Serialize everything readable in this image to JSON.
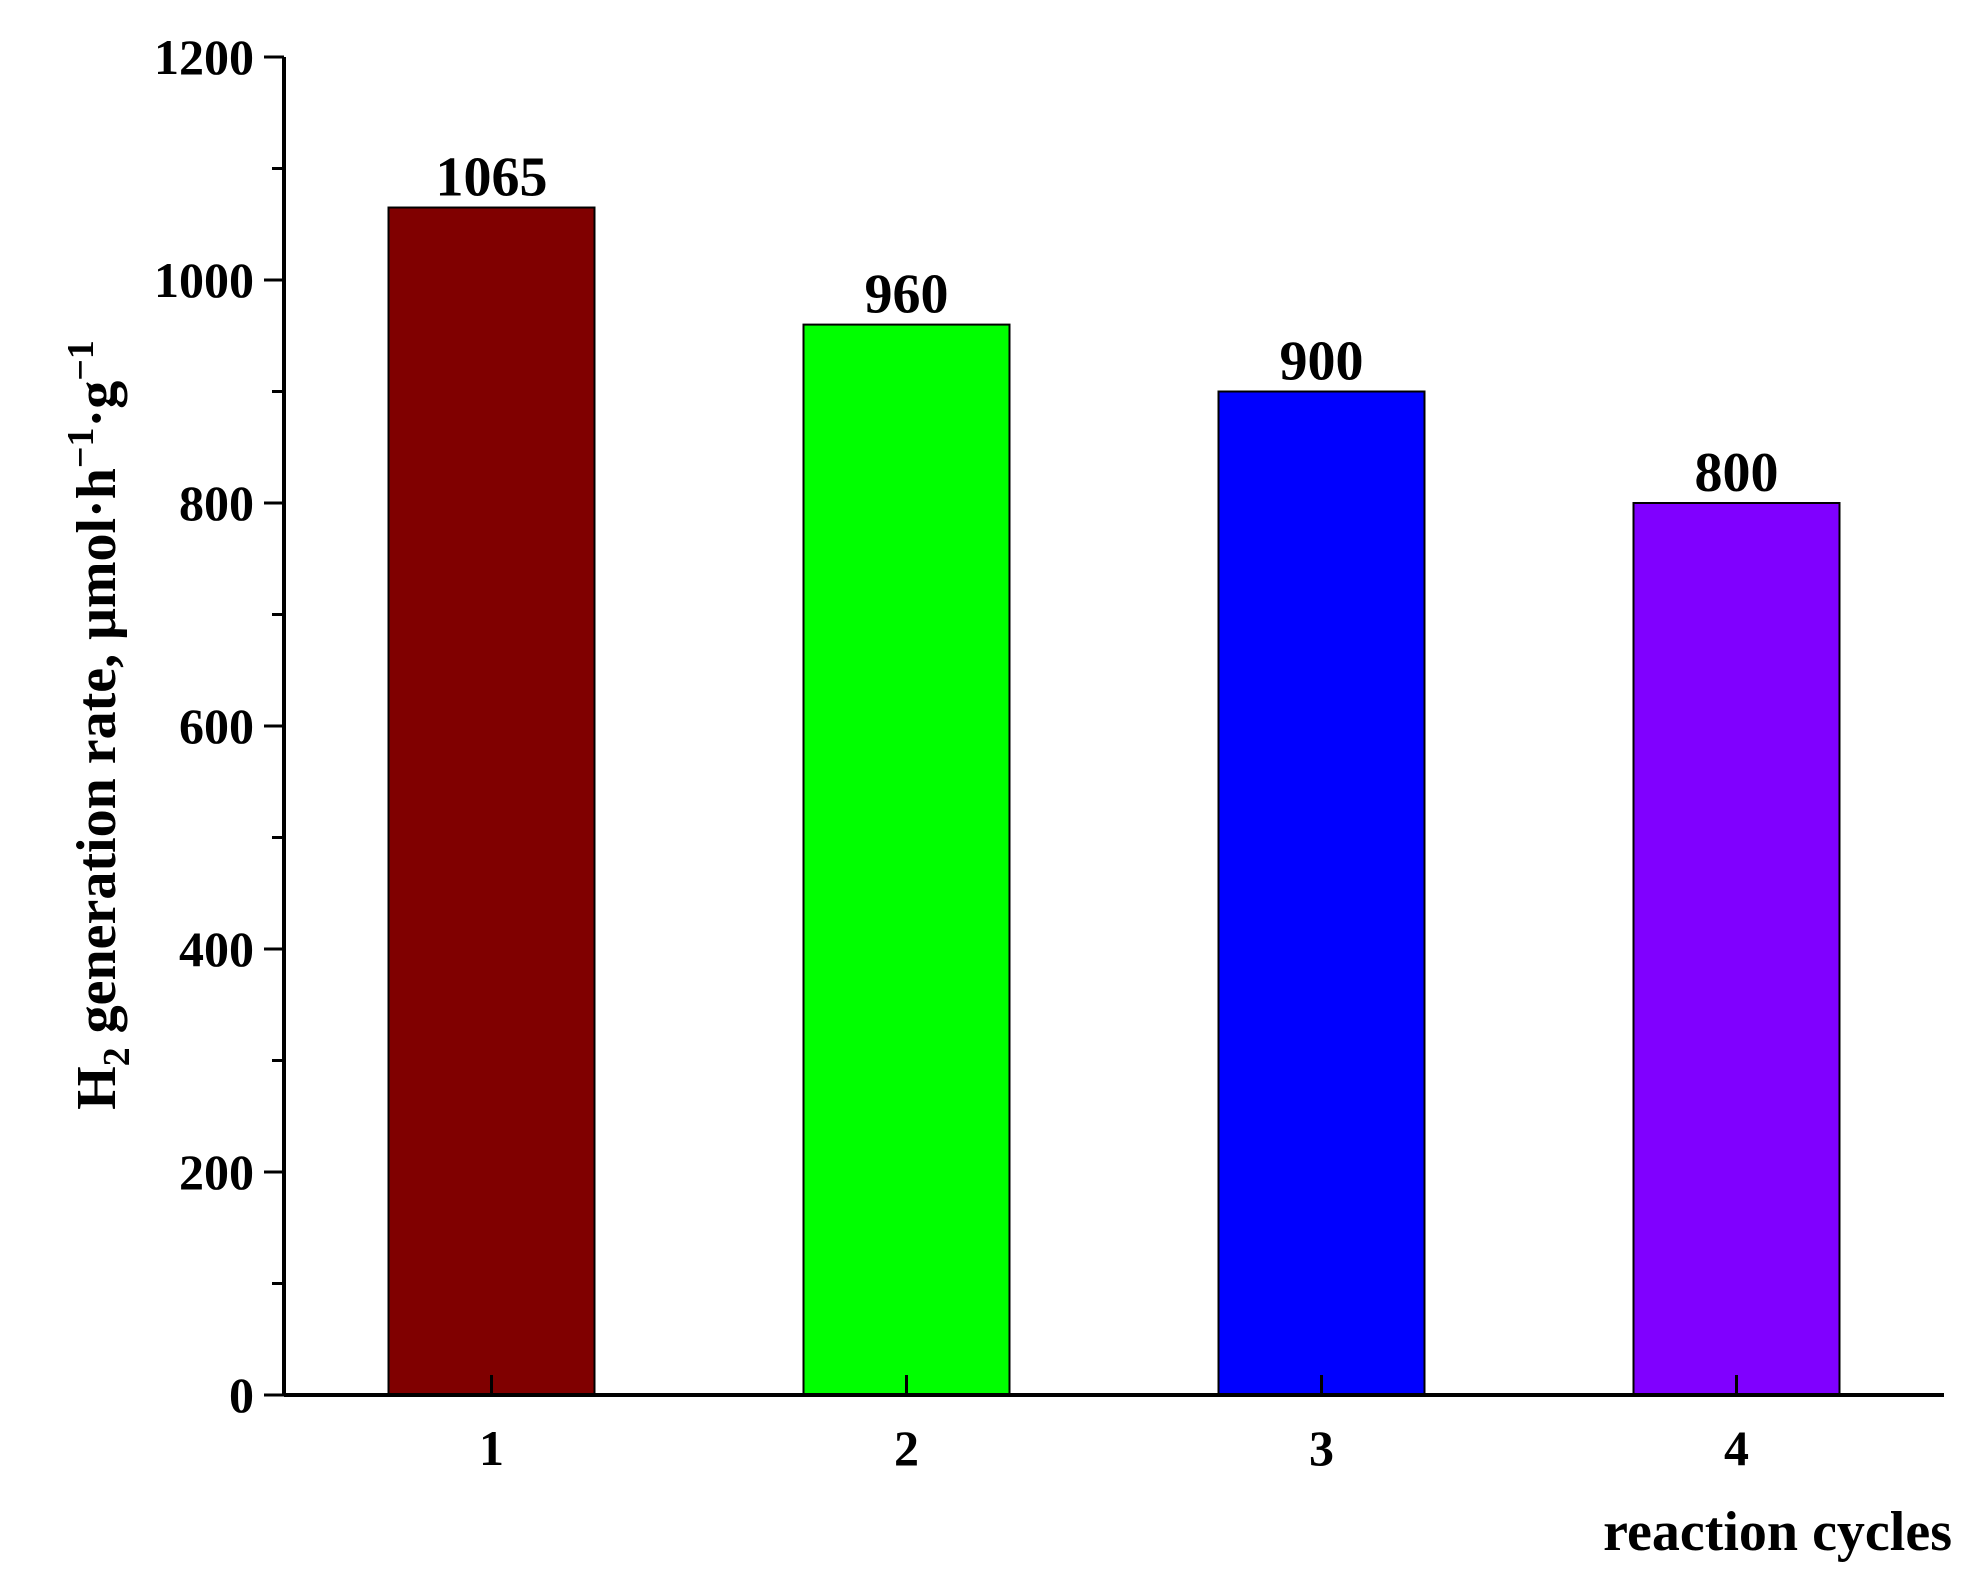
{
  "chart_data": {
    "type": "bar",
    "categories": [
      "1",
      "2",
      "3",
      "4"
    ],
    "values": [
      1065,
      960,
      900,
      800
    ],
    "data_labels": [
      "1065",
      "960",
      "900",
      "800"
    ],
    "colors": [
      "#800000",
      "#00ff00",
      "#0000ff",
      "#8000ff"
    ],
    "title": "",
    "xlabel": "reaction cycles",
    "ylabel": {
      "prefix": "H",
      "subscript": "2",
      "middle": " generation rate, μmol·h",
      "sup1": "−1",
      "dot": "·g",
      "sup2": "−1"
    },
    "ylim": [
      0,
      1200
    ],
    "yticks": [
      0,
      200,
      400,
      600,
      800,
      1000,
      1200
    ],
    "ytick_labels": [
      "0",
      "200",
      "400",
      "600",
      "800",
      "1000",
      "1200"
    ],
    "grid": false,
    "legend": "none"
  }
}
